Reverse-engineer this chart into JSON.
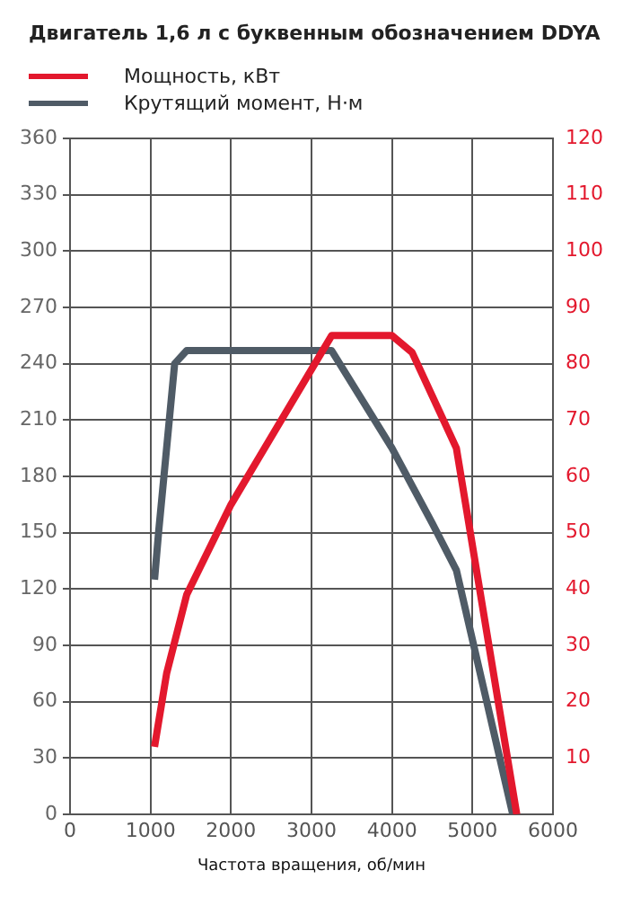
{
  "chart_data": {
    "type": "line",
    "title": "Двигатель 1,6 л с буквенным обозначением DDYA",
    "xlabel": "Частота вращения, об/мин",
    "legend": "top left",
    "grid": true,
    "marker": "none",
    "line_style": "solid",
    "xlim": [
      0,
      6000
    ],
    "xticks": [
      0,
      1000,
      2000,
      3000,
      4000,
      5000,
      6000
    ],
    "ylim": [
      0,
      360
    ],
    "yticks": [
      0,
      30,
      60,
      90,
      120,
      150,
      180,
      210,
      240,
      270,
      300,
      330,
      360
    ],
    "y2lim": [
      0,
      120
    ],
    "y2ticks": [
      10,
      20,
      30,
      40,
      50,
      60,
      70,
      80,
      90,
      100,
      110,
      120
    ],
    "series": [
      {
        "name": "Мощность, кВт",
        "color": "#e3182d",
        "axis": "y2",
        "x": [
          1050,
          1200,
          1450,
          2000,
          3250,
          4000,
          4250,
          4800,
          5550
        ],
        "values": [
          12,
          25,
          39,
          55,
          85,
          85,
          82,
          65,
          0
        ]
      },
      {
        "name": "Крутящий момент, Н·м",
        "color": "#4f5b66",
        "axis": "y",
        "x": [
          1050,
          1100,
          1300,
          1450,
          3250,
          4000,
          4500,
          4800,
          5500
        ],
        "values": [
          125,
          150,
          240,
          247,
          247,
          195,
          155,
          130,
          0
        ]
      }
    ]
  }
}
